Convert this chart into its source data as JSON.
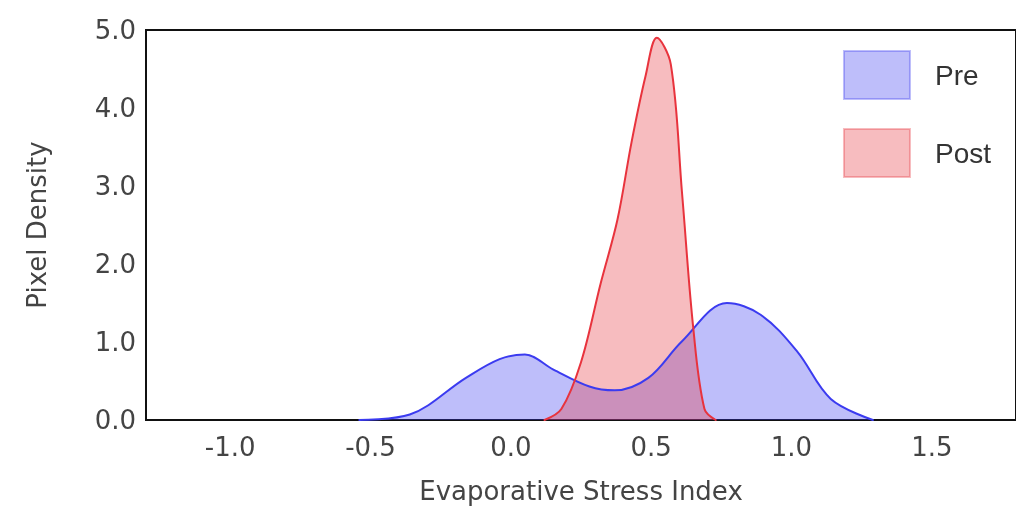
{
  "chart_data": {
    "type": "area",
    "xlabel": "Evaporative Stress Index",
    "ylabel": "Pixel Density",
    "series": [
      {
        "name": "Pre",
        "color": "#3b3bf0",
        "x": [
          -0.54,
          -0.36,
          -0.16,
          -0.04,
          0.05,
          0.15,
          0.28,
          0.37,
          0.49,
          0.61,
          0.77,
          0.89,
          1.02,
          1.14,
          1.29
        ],
        "values": [
          0,
          0.07,
          0.54,
          0.78,
          0.84,
          0.65,
          0.43,
          0.38,
          0.54,
          1.01,
          1.5,
          1.35,
          0.88,
          0.27,
          0
        ]
      },
      {
        "name": "Post",
        "color": "#e8333d",
        "x": [
          0.12,
          0.18,
          0.25,
          0.32,
          0.38,
          0.43,
          0.48,
          0.52,
          0.57,
          0.61,
          0.65,
          0.69,
          0.73
        ],
        "values": [
          0,
          0.14,
          0.74,
          1.75,
          2.57,
          3.56,
          4.41,
          4.9,
          4.56,
          2.91,
          1.18,
          0.14,
          0
        ]
      }
    ],
    "xlim": [
      -1.3,
      1.8
    ],
    "xticks": [
      {
        "value": -1,
        "label": "-1.0"
      },
      {
        "value": -0.5,
        "label": "-0.5"
      },
      {
        "value": 0,
        "label": "0.0"
      },
      {
        "value": 0.5,
        "label": "0.5"
      },
      {
        "value": 1,
        "label": "1.0"
      },
      {
        "value": 1.5,
        "label": "1.5"
      }
    ],
    "ylim": [
      0,
      5
    ],
    "yticks": [
      {
        "value": 0,
        "label": "0.0"
      },
      {
        "value": 1,
        "label": "1.0"
      },
      {
        "value": 2,
        "label": "2.0"
      },
      {
        "value": 3,
        "label": "3.0"
      },
      {
        "value": 4,
        "label": "4.0"
      },
      {
        "value": 5,
        "label": "5.0"
      }
    ],
    "grid": false,
    "legend": "top right",
    "marker": "none",
    "line_style": "solid"
  }
}
